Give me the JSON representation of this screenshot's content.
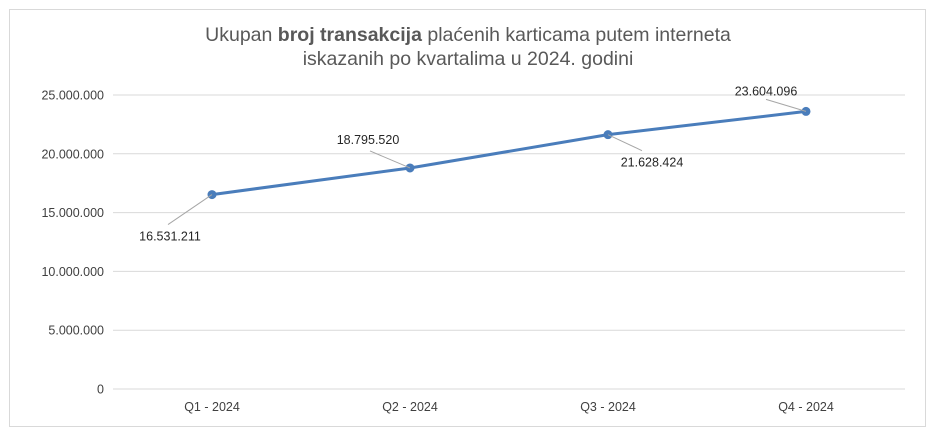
{
  "chart_data": {
    "type": "line",
    "title_pre": "Ukupan ",
    "title_bold": "broj transakcija",
    "title_post": " plaćenih karticama putem interneta",
    "title_line2": "iskazanih po kvartalima u 2024. godini",
    "categories": [
      "Q1 - 2024",
      "Q2 - 2024",
      "Q3 - 2024",
      "Q4 - 2024"
    ],
    "series": [
      {
        "values": [
          16531211,
          18795520,
          21628424,
          23604096
        ],
        "labels": [
          "16.531.211",
          "18.795.520",
          "21.628.424",
          "23.604.096"
        ],
        "color": "#4a7dbb"
      }
    ],
    "ylim": [
      0,
      25000000
    ],
    "yticks": [
      0,
      5000000,
      10000000,
      15000000,
      20000000,
      25000000
    ],
    "ytick_labels": [
      "0",
      "5.000.000",
      "10.000.000",
      "15.000.000",
      "20.000.000",
      "25.000.000"
    ],
    "grid": true,
    "gridline_color": "#d9d9d9",
    "legend": "none"
  }
}
